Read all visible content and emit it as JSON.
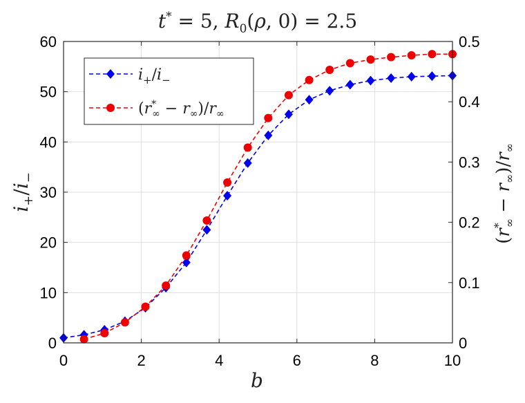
{
  "chart_data": {
    "type": "line",
    "title": "t* = 5, R₀(ρ, 0) = 2.5",
    "xlabel": "b",
    "ylabel_left": "i₊/i₋",
    "ylabel_right": "(r*∞ − r∞)/r∞",
    "xlim": [
      0,
      10
    ],
    "ylim_left": [
      0,
      60
    ],
    "ylim_right": [
      0,
      0.5
    ],
    "x_ticks": [
      "0",
      "2",
      "4",
      "6",
      "8",
      "10"
    ],
    "y_ticks_left": [
      "0",
      "10",
      "20",
      "30",
      "40",
      "50",
      "60"
    ],
    "y_ticks_right": [
      "0",
      "0.1",
      "0.2",
      "0.3",
      "0.4",
      "0.5"
    ],
    "grid": true,
    "legend_position": "top-left",
    "series": [
      {
        "name": "i₊/i₋",
        "axis": "left",
        "color": "#0000ee",
        "marker": "diamond",
        "linestyle": "dashed",
        "x": [
          0,
          0.526,
          1.053,
          1.579,
          2.105,
          2.632,
          3.158,
          3.684,
          4.211,
          4.737,
          5.263,
          5.789,
          6.316,
          6.842,
          7.368,
          7.895,
          8.421,
          8.947,
          9.474,
          10
        ],
        "y": [
          1.0,
          1.6,
          2.6,
          4.3,
          7.0,
          11.0,
          16.0,
          22.5,
          29.3,
          35.8,
          41.3,
          45.5,
          48.4,
          50.2,
          51.4,
          52.2,
          52.7,
          53.0,
          53.1,
          53.2
        ]
      },
      {
        "name": "(r*∞ − r∞)/r∞",
        "axis": "right",
        "color": "#ee0000",
        "marker": "circle",
        "linestyle": "dashed",
        "x": [
          0.526,
          1.053,
          1.579,
          2.105,
          2.632,
          3.158,
          3.684,
          4.211,
          4.737,
          5.263,
          5.789,
          6.316,
          6.842,
          7.368,
          7.895,
          8.421,
          8.947,
          9.474,
          10
        ],
        "y": [
          0.006,
          0.016,
          0.034,
          0.06,
          0.095,
          0.145,
          0.203,
          0.266,
          0.324,
          0.373,
          0.411,
          0.436,
          0.453,
          0.464,
          0.47,
          0.474,
          0.477,
          0.479,
          0.479
        ]
      }
    ]
  }
}
